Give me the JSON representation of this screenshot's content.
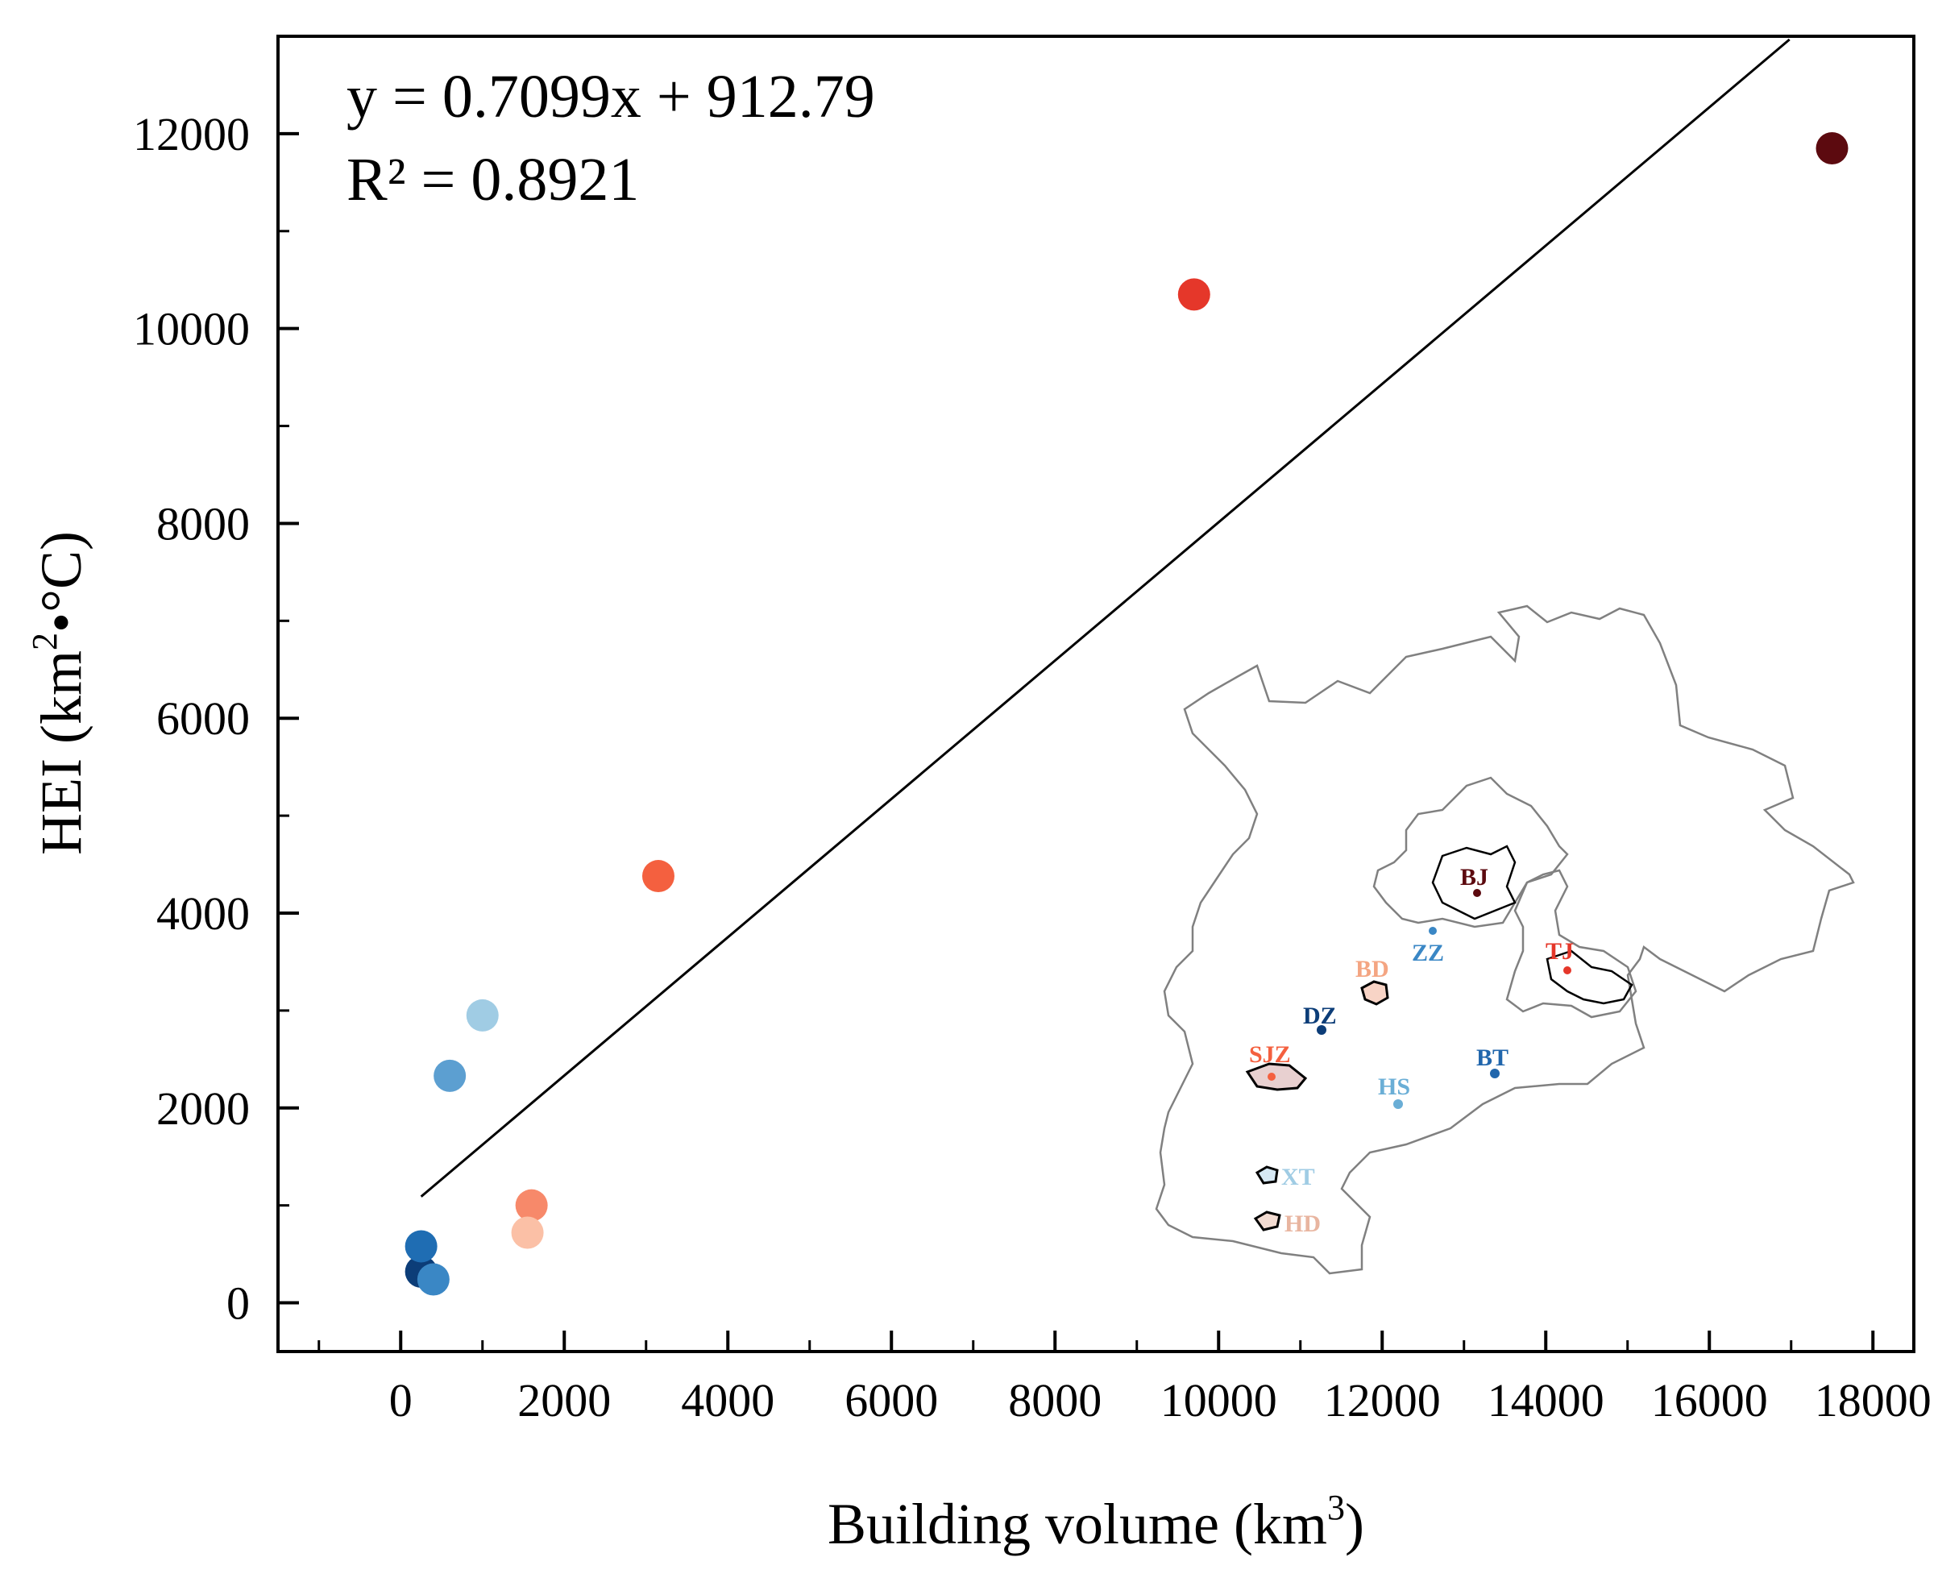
{
  "chart_data": {
    "type": "scatter",
    "title": "",
    "xlabel": "Building volume (km",
    "xlabel_sup": "3",
    "xlabel_end": ")",
    "ylabel": "HEI (km",
    "ylabel_sup": "2",
    "ylabel_end": "•°C)",
    "xlim": [
      -1500,
      18500
    ],
    "ylim": [
      -500,
      13000
    ],
    "x_ticks": [
      0,
      2000,
      4000,
      6000,
      8000,
      10000,
      12000,
      14000,
      16000,
      18000
    ],
    "x_tick_labels": [
      "0",
      "2000",
      "4000",
      "6000",
      "8000",
      "10000",
      "12000",
      "14000",
      "16000",
      "18000"
    ],
    "x_minor_ticks": [
      -1000,
      1000,
      3000,
      5000,
      7000,
      9000,
      11000,
      13000,
      15000,
      17000
    ],
    "y_ticks": [
      0,
      2000,
      4000,
      6000,
      8000,
      10000,
      12000
    ],
    "y_tick_labels": [
      "0",
      "2000",
      "4000",
      "6000",
      "8000",
      "10000",
      "12000"
    ],
    "y_minor_ticks": [
      1000,
      3000,
      5000,
      7000,
      9000,
      11000
    ],
    "grid": false,
    "points": [
      {
        "city": "BJ",
        "x": 17500,
        "y": 11850,
        "color": "#5c0a0f"
      },
      {
        "city": "TJ",
        "x": 9700,
        "y": 10350,
        "color": "#e5372a"
      },
      {
        "city": "SJZ",
        "x": 3150,
        "y": 4380,
        "color": "#f4603f"
      },
      {
        "city": "XT",
        "x": 1000,
        "y": 2950,
        "color": "#a0cce4"
      },
      {
        "city": "HS",
        "x": 600,
        "y": 2330,
        "color": "#5c9fd1"
      },
      {
        "city": "BD",
        "x": 1600,
        "y": 1000,
        "color": "#f7896a"
      },
      {
        "city": "HD",
        "x": 1550,
        "y": 720,
        "color": "#fbc0a6"
      },
      {
        "city": "DZ",
        "x": 250,
        "y": 320,
        "color": "#0c3d78"
      },
      {
        "city": "ZZ",
        "x": 250,
        "y": 580,
        "color": "#1f6db3"
      },
      {
        "city": "BT",
        "x": 400,
        "y": 240,
        "color": "#3a87c5"
      }
    ],
    "regression": {
      "slope": 0.7099,
      "intercept": 912.79,
      "x_start": 250,
      "x_end": 16980,
      "equation": "y = 0.7099x + 912.79",
      "r2_label": "R² = 0.8921"
    },
    "inset_map": {
      "labels": [
        {
          "text": "BJ",
          "color": "#5c0a0f"
        },
        {
          "text": "TJ",
          "color": "#e5372a"
        },
        {
          "text": "ZZ",
          "color": "#3a87c5"
        },
        {
          "text": "BD",
          "color": "#f4a582"
        },
        {
          "text": "DZ",
          "color": "#0c3d78"
        },
        {
          "text": "SJZ",
          "color": "#f4603f"
        },
        {
          "text": "BT",
          "color": "#2166ac"
        },
        {
          "text": "HS",
          "color": "#6aaed6"
        },
        {
          "text": "XT",
          "color": "#a0cce4"
        },
        {
          "text": "HD",
          "color": "#e8b5a0"
        }
      ]
    }
  }
}
